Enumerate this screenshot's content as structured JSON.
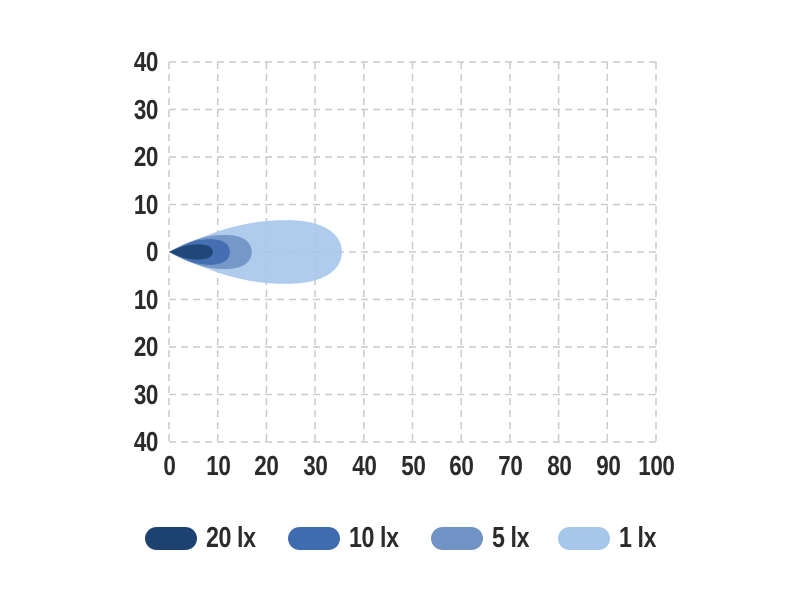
{
  "page": {
    "background": "#ffffff",
    "text_color": "#2b2b2d"
  },
  "chart_data": {
    "type": "area",
    "subtype": "isolux-beam-pattern",
    "x_axis": {
      "min": 0,
      "max": 100,
      "tick_step": 10,
      "ticks": [
        0,
        10,
        20,
        30,
        40,
        50,
        60,
        70,
        80,
        90,
        100
      ],
      "tick_labels": [
        "0",
        "10",
        "20",
        "30",
        "40",
        "50",
        "60",
        "70",
        "80",
        "90",
        "100"
      ]
    },
    "y_axis": {
      "min": -40,
      "max": 40,
      "tick_step": 10,
      "ticks": [
        40,
        30,
        20,
        10,
        0,
        -10,
        -20,
        -30,
        -40
      ],
      "tick_labels": [
        "40",
        "30",
        "20",
        "10",
        "0",
        "10",
        "20",
        "30",
        "40"
      ]
    },
    "grid": {
      "visible": true,
      "style": "dashed",
      "color": "#c9cacd"
    },
    "series": [
      {
        "name": "20 lx",
        "color": "#1d4271",
        "tip_x": 0,
        "tip_y": 0,
        "length": 9,
        "half_width": 1.6
      },
      {
        "name": "10 lx",
        "color": "#3f6cb0",
        "tip_x": 0,
        "tip_y": 0,
        "length": 12.5,
        "half_width": 2.7
      },
      {
        "name": "5 lx",
        "color": "#7092c4",
        "tip_x": 0,
        "tip_y": 0,
        "length": 17,
        "half_width": 3.6
      },
      {
        "name": "1 lx",
        "color": "#a6c7ea",
        "tip_x": 0,
        "tip_y": 0,
        "length": 35.5,
        "half_width": 6.7
      }
    ],
    "shape_hints": {
      "bulge_at_fraction": 0.68,
      "fill_opacity": 0.9
    },
    "legend": {
      "position": "bottom",
      "order": [
        "20 lx",
        "10 lx",
        "5 lx",
        "1 lx"
      ]
    }
  }
}
